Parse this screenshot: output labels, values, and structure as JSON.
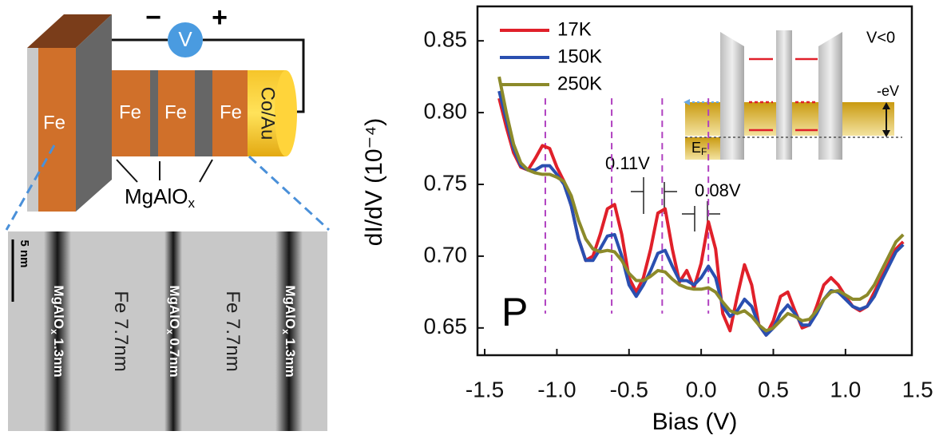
{
  "schematic": {
    "minus": "−",
    "plus": "+",
    "meter": "V",
    "fe_plate": "Fe",
    "fe_layers": [
      "Fe",
      "Fe",
      "Fe"
    ],
    "cap": "Co/Au",
    "barrier_main": "MgAlO",
    "barrier_sub": "x"
  },
  "tem": {
    "scale_bar": "5 nm",
    "layers": [
      {
        "main": "MgAlO",
        "sub": "x",
        "rest": " 1.3nm"
      },
      {
        "main": "Fe 7.7nm"
      },
      {
        "main": "MgAlO",
        "sub": "x",
        "rest": " 0.7nm"
      },
      {
        "main": "Fe 7.7nm"
      },
      {
        "main": "MgAlO",
        "sub": "x",
        "rest": " 1.3nm"
      }
    ]
  },
  "chart_data": {
    "type": "line",
    "xlabel": "Bias (V)",
    "ylabel": "dI/dV (10⁻⁴)",
    "xlim": [
      -1.55,
      1.46
    ],
    "ylim": [
      0.631,
      0.874
    ],
    "xticks": [
      -1.5,
      {
        "value": -1,
        "label": "-1.0"
      },
      -0.5,
      {
        "value": 0,
        "label": "0.0"
      },
      0.5,
      {
        "value": 1,
        "label": "1.0"
      },
      1.5
    ],
    "yticks": [
      0.65,
      {
        "value": 0.7,
        "label": "0.70"
      },
      0.75,
      {
        "value": 0.8,
        "label": "0.80"
      },
      0.85
    ],
    "legend": "upper left",
    "x": [
      -1.4,
      -1.35,
      -1.3,
      -1.25,
      -1.2,
      -1.15,
      -1.1,
      -1.05,
      -1,
      -0.95,
      -0.9,
      -0.85,
      -0.8,
      -0.75,
      -0.7,
      -0.65,
      -0.6,
      -0.55,
      -0.5,
      -0.45,
      -0.4,
      -0.35,
      -0.3,
      -0.25,
      -0.2,
      -0.15,
      -0.1,
      -0.05,
      0,
      0.05,
      0.1,
      0.15,
      0.2,
      0.25,
      0.3,
      0.35,
      0.4,
      0.45,
      0.5,
      0.55,
      0.6,
      0.65,
      0.7,
      0.75,
      0.8,
      0.85,
      0.9,
      0.95,
      1,
      1.05,
      1.1,
      1.15,
      1.2,
      1.25,
      1.3,
      1.35,
      1.4
    ],
    "series": [
      {
        "name": "17K",
        "color": "#e0202a",
        "values": [
          0.81,
          0.79,
          0.772,
          0.762,
          0.76,
          0.768,
          0.777,
          0.775,
          0.762,
          0.752,
          0.735,
          0.712,
          0.697,
          0.7,
          0.715,
          0.733,
          0.736,
          0.715,
          0.685,
          0.675,
          0.685,
          0.705,
          0.73,
          0.733,
          0.705,
          0.682,
          0.69,
          0.678,
          0.695,
          0.724,
          0.705,
          0.66,
          0.648,
          0.672,
          0.694,
          0.68,
          0.652,
          0.645,
          0.655,
          0.672,
          0.675,
          0.662,
          0.65,
          0.652,
          0.665,
          0.68,
          0.685,
          0.68,
          0.672,
          0.665,
          0.662,
          0.665,
          0.675,
          0.685,
          0.695,
          0.705,
          0.71
        ]
      },
      {
        "name": "150K",
        "color": "#2a4fb0",
        "values": [
          0.815,
          0.795,
          0.775,
          0.763,
          0.76,
          0.76,
          0.763,
          0.763,
          0.757,
          0.75,
          0.735,
          0.712,
          0.697,
          0.697,
          0.705,
          0.714,
          0.715,
          0.7,
          0.68,
          0.672,
          0.68,
          0.69,
          0.702,
          0.704,
          0.693,
          0.683,
          0.683,
          0.68,
          0.685,
          0.693,
          0.685,
          0.665,
          0.658,
          0.662,
          0.67,
          0.665,
          0.652,
          0.645,
          0.65,
          0.66,
          0.666,
          0.66,
          0.652,
          0.652,
          0.66,
          0.67,
          0.676,
          0.675,
          0.67,
          0.665,
          0.663,
          0.665,
          0.672,
          0.683,
          0.693,
          0.703,
          0.708
        ]
      },
      {
        "name": "250K",
        "color": "#8c8a2a",
        "values": [
          0.825,
          0.8,
          0.778,
          0.765,
          0.76,
          0.758,
          0.757,
          0.757,
          0.755,
          0.752,
          0.742,
          0.725,
          0.712,
          0.705,
          0.703,
          0.704,
          0.703,
          0.697,
          0.688,
          0.683,
          0.683,
          0.686,
          0.69,
          0.689,
          0.684,
          0.68,
          0.678,
          0.677,
          0.677,
          0.678,
          0.675,
          0.668,
          0.662,
          0.66,
          0.662,
          0.658,
          0.652,
          0.648,
          0.65,
          0.655,
          0.66,
          0.658,
          0.655,
          0.656,
          0.662,
          0.67,
          0.675,
          0.676,
          0.673,
          0.67,
          0.67,
          0.673,
          0.68,
          0.69,
          0.7,
          0.71,
          0.715
        ]
      }
    ],
    "peak_lines_x": [
      -1.08,
      -0.62,
      -0.27,
      0.05
    ],
    "annotations": {
      "spacing_1": "0.11V",
      "spacing_2": "0.08V",
      "panel": "P"
    },
    "inset": {
      "condition": "V<0",
      "bias": "-eV",
      "fermi_main": "E",
      "fermi_sub": "F"
    }
  }
}
